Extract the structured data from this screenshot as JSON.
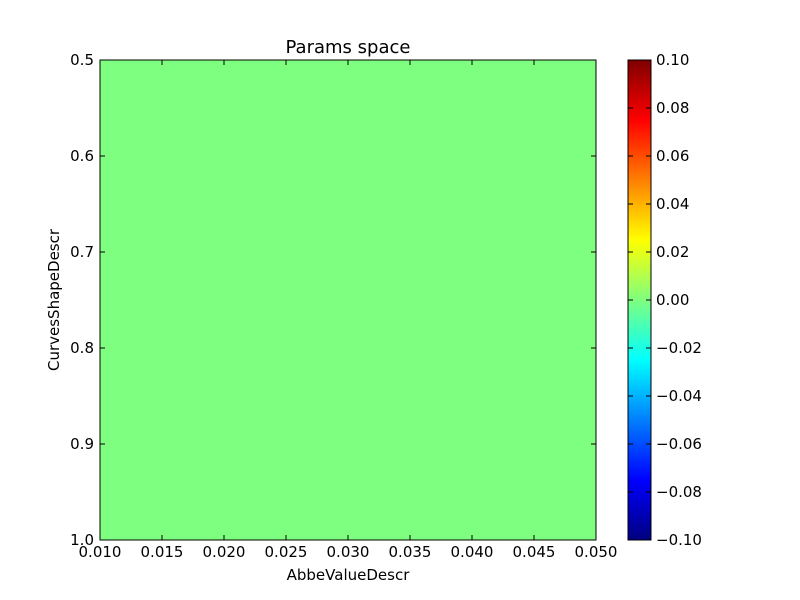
{
  "chart_data": {
    "type": "heatmap",
    "title": "Params space",
    "xlabel": "AbbeValueDescr",
    "ylabel": "CurvesShapeDescr",
    "xlim": [
      0.01,
      0.05
    ],
    "ylim": [
      1.0,
      0.5
    ],
    "x_ticks": [
      "0.010",
      "0.015",
      "0.020",
      "0.025",
      "0.030",
      "0.035",
      "0.040",
      "0.045",
      "0.050"
    ],
    "y_ticks": [
      "0.5",
      "0.6",
      "0.7",
      "0.8",
      "0.9",
      "1.0"
    ],
    "values": [
      [
        0.0
      ]
    ],
    "colormap": "jet",
    "fill_color": "#7fff7f",
    "grid": false,
    "colorbar": {
      "range": [
        -0.1,
        0.1
      ],
      "ticks": [
        "0.10",
        "0.08",
        "0.06",
        "0.04",
        "0.02",
        "0.00",
        "−0.02",
        "−0.04",
        "−0.06",
        "−0.08",
        "−0.10"
      ],
      "colors": [
        "#00007f",
        "#0000ff",
        "#007fff",
        "#00ffff",
        "#7fff7f",
        "#ffff00",
        "#ff7f00",
        "#ff0000",
        "#7f0000"
      ]
    }
  }
}
